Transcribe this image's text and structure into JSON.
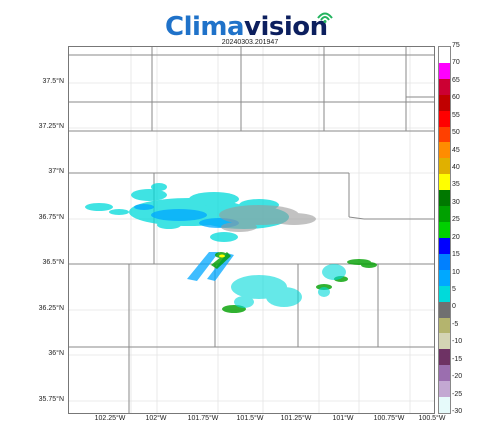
{
  "logo": {
    "part1": "Clima",
    "part2": "vision"
  },
  "timestamp": "20240303.201947",
  "latitude_labels": [
    "37.5°N",
    "37.25°N",
    "37°N",
    "36.75°N",
    "36.5°N",
    "36.25°N",
    "36°N",
    "35.75°N"
  ],
  "longitude_labels": [
    "102.25°W",
    "102°W",
    "101.75°W",
    "101.5°W",
    "101.25°W",
    "101°W",
    "100.75°W",
    "100.5°W"
  ],
  "colorbar": {
    "ticks": [
      "75",
      "70",
      "65",
      "60",
      "55",
      "50",
      "45",
      "40",
      "35",
      "30",
      "25",
      "20",
      "15",
      "10",
      "5",
      "0",
      "-5",
      "-10",
      "-15",
      "-20",
      "-25",
      "-30"
    ],
    "colors": [
      "#ffffff",
      "#ff00ff",
      "#cc0033",
      "#c00000",
      "#ff0000",
      "#ff4000",
      "#ff8c00",
      "#e0b000",
      "#ffff00",
      "#007800",
      "#00a000",
      "#00d000",
      "#0000ff",
      "#0080ff",
      "#00a8ff",
      "#00dada",
      "#707070",
      "#b4b46e",
      "#d4d4b4",
      "#6e3264",
      "#9b6eaf",
      "#c3a8d2",
      "#e6fafa"
    ]
  }
}
